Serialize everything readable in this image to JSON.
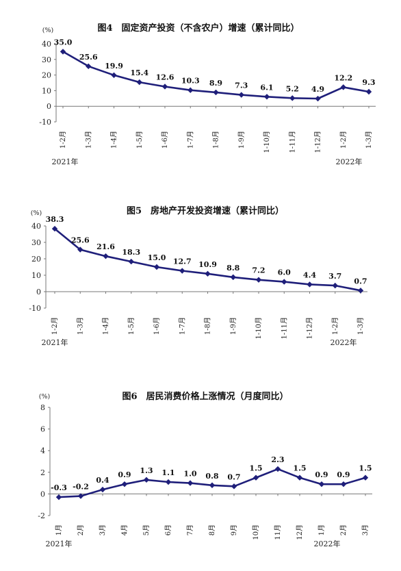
{
  "chart_data": [
    {
      "type": "line",
      "title": "图4　固定资产投资（不含农户）增速（累计同比）",
      "unit": "(%)",
      "ylim": [
        -10,
        40
      ],
      "yticks": [
        -10,
        0,
        10,
        20,
        30,
        40
      ],
      "categories": [
        "1-2月",
        "1-3月",
        "1-4月",
        "1-5月",
        "1-6月",
        "1-7月",
        "1-8月",
        "1-9月",
        "1-10月",
        "1-11月",
        "1-12月",
        "1-2月",
        "1-3月"
      ],
      "values": [
        35.0,
        25.6,
        19.9,
        15.4,
        12.6,
        10.3,
        8.9,
        7.3,
        6.1,
        5.2,
        4.9,
        12.2,
        9.3
      ],
      "value_labels": [
        "35.0",
        "25.6",
        "19.9",
        "15.4",
        "12.6",
        "10.3",
        "8.9",
        "7.3",
        "6.1",
        "5.2",
        "4.9",
        "12.2",
        "9.3"
      ],
      "year_labels": [
        "2021年",
        "2022年"
      ],
      "grid": false,
      "color": "#1f1f7a"
    },
    {
      "type": "line",
      "title": "图5　房地产开发投资增速（累计同比）",
      "unit": "(%)",
      "ylim": [
        -10,
        40
      ],
      "yticks": [
        -10,
        0,
        10,
        20,
        30,
        40
      ],
      "categories": [
        "1-2月",
        "1-3月",
        "1-4月",
        "1-5月",
        "1-6月",
        "1-7月",
        "1-8月",
        "1-9月",
        "1-10月",
        "1-11月",
        "1-12月",
        "1-2月",
        "1-3月"
      ],
      "values": [
        38.3,
        25.6,
        21.6,
        18.3,
        15.0,
        12.7,
        10.9,
        8.8,
        7.2,
        6.0,
        4.4,
        3.7,
        0.7
      ],
      "value_labels": [
        "38.3",
        "25.6",
        "21.6",
        "18.3",
        "15.0",
        "12.7",
        "10.9",
        "8.8",
        "7.2",
        "6.0",
        "4.4",
        "3.7",
        "0.7"
      ],
      "year_labels": [
        "2021年",
        "2022年"
      ],
      "grid": false,
      "color": "#1f1f7a"
    },
    {
      "type": "line",
      "title": "图6　居民消费价格上涨情况（月度同比）",
      "unit": "(%)",
      "ylim": [
        -2,
        8
      ],
      "yticks": [
        -2,
        0,
        2,
        4,
        6,
        8
      ],
      "categories": [
        "1月",
        "2月",
        "3月",
        "4月",
        "5月",
        "6月",
        "7月",
        "8月",
        "9月",
        "10月",
        "11月",
        "12月",
        "1月",
        "2月",
        "3月"
      ],
      "values": [
        -0.3,
        -0.2,
        0.4,
        0.9,
        1.3,
        1.1,
        1.0,
        0.8,
        0.7,
        1.5,
        2.3,
        1.5,
        0.9,
        0.9,
        1.5
      ],
      "value_labels": [
        "-0.3",
        "-0.2",
        "0.4",
        "0.9",
        "1.3",
        "1.1",
        "1.0",
        "0.8",
        "0.7",
        "1.5",
        "2.3",
        "1.5",
        "0.9",
        "0.9",
        "1.5"
      ],
      "year_labels": [
        "2021年",
        "2022年"
      ],
      "grid": false,
      "color": "#1f1f7a"
    }
  ]
}
